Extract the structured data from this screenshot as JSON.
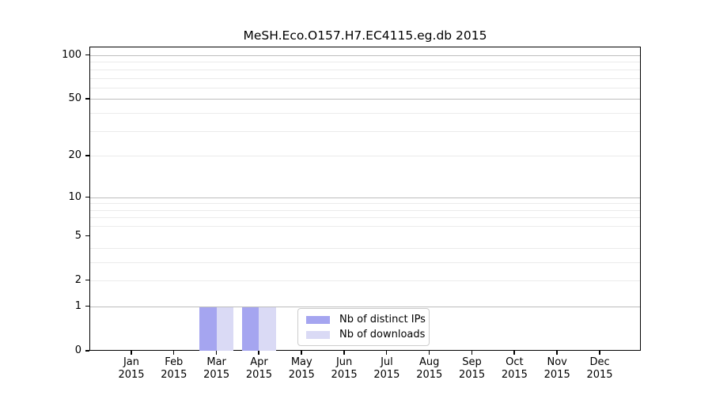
{
  "title": "MeSH.Eco.O157.H7.EC4115.eg.db 2015",
  "chart_data": {
    "type": "bar",
    "title": "MeSH.Eco.O157.H7.EC4115.eg.db 2015",
    "categories": [
      "Jan",
      "Feb",
      "Mar",
      "Apr",
      "May",
      "Jun",
      "Jul",
      "Aug",
      "Sep",
      "Oct",
      "Nov",
      "Dec"
    ],
    "x_year_label": "2015",
    "series": [
      {
        "name": "Nb of distinct IPs",
        "color": "#a5a5f0",
        "values": [
          0,
          0,
          1,
          1,
          0,
          0,
          0,
          0,
          0,
          0,
          0,
          0
        ]
      },
      {
        "name": "Nb of downloads",
        "color": "#dadaf5",
        "values": [
          0,
          0,
          1,
          1,
          0,
          0,
          0,
          0,
          0,
          0,
          0,
          0
        ]
      }
    ],
    "yscale": "log10(1+x)",
    "ytick_values": [
      0,
      1,
      2,
      5,
      10,
      20,
      50,
      100
    ],
    "ytick_labels": [
      "0",
      "1",
      "2",
      "5",
      "10",
      "20",
      "50",
      "100"
    ],
    "ylim": [
      0,
      114
    ],
    "grid": "horizontal",
    "gridline_minor_values": [
      2,
      3,
      4,
      6,
      7,
      8,
      9,
      20,
      30,
      40,
      60,
      70,
      80,
      90
    ],
    "gridline_major_values": [
      1,
      10,
      50,
      100
    ],
    "legend_position": "bottom-center"
  },
  "legend": {
    "items": [
      {
        "label": "Nb of distinct IPs",
        "color": "#a5a5f0"
      },
      {
        "label": "Nb of downloads",
        "color": "#dadaf5"
      }
    ]
  },
  "colors": {
    "bar_distinct_ips": "#a5a5f0",
    "bar_downloads": "#dadaf5",
    "gridline_major": "#bdbdbd",
    "gridline_minor": "#ebebeb",
    "axis": "#000000",
    "legend_border": "#cccccc",
    "background": "#ffffff"
  }
}
